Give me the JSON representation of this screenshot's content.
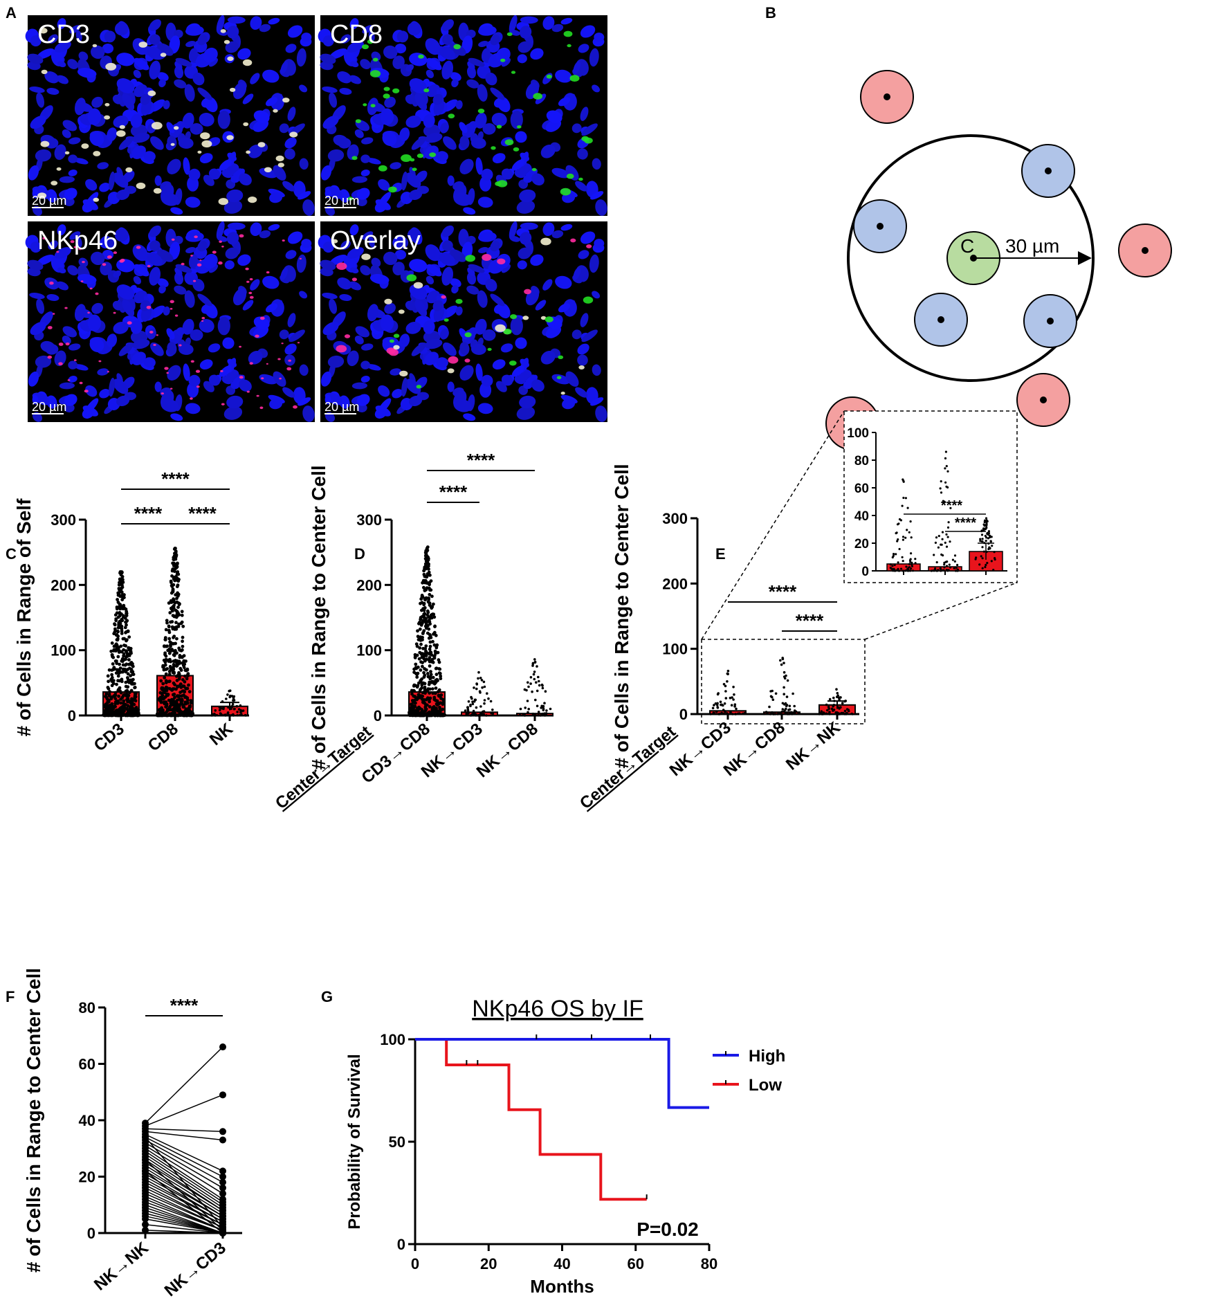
{
  "panel_labels": [
    "A",
    "B",
    "C",
    "D",
    "E",
    "F",
    "G"
  ],
  "colors": {
    "bar_red": "#e8141c",
    "nucleus_blue": "#1a1ae6",
    "cd8_green": "#22dd22",
    "nkp46_magenta": "#ff2aa0",
    "cd3_white": "#f4f0d0",
    "cell_red": "#f4a0a0",
    "cell_blue": "#b0c4e8",
    "cell_green": "#b8dca0",
    "km_high": "#1a1ae6",
    "km_low": "#e8141c"
  },
  "panel_a": {
    "channels": [
      "CD3",
      "CD8",
      "NKp46",
      "Overlay"
    ],
    "scale_bar": "20 µm"
  },
  "panel_b": {
    "center_label": "C",
    "radius_label": "30 µm"
  },
  "chart_data": [
    {
      "panel": "C",
      "type": "bar",
      "categories": [
        "CD3",
        "CD8",
        "NK"
      ],
      "values": [
        36,
        61,
        14
      ],
      "error_top": [
        null,
        null,
        20
      ],
      "point_max": [
        220,
        256,
        38
      ],
      "ylabel": "# of Cells in Range of Self",
      "ylim": [
        0,
        300
      ],
      "yticks": [
        0,
        100,
        200,
        300
      ],
      "comparisons": [
        {
          "from": "CD3",
          "to": "NK",
          "label": "****"
        },
        {
          "from": "CD3",
          "to": "CD8",
          "label": "****"
        },
        {
          "from": "CD8",
          "to": "NK",
          "label": "****"
        }
      ]
    },
    {
      "panel": "D",
      "type": "bar",
      "axis_note": "Center→Target",
      "categories": [
        "CD3→CD8",
        "NK→CD3",
        "NK→CD8"
      ],
      "values": [
        36,
        5,
        3
      ],
      "point_max": [
        258,
        66,
        86
      ],
      "ylabel": "# of Cells in Range to Center Cell",
      "ylim": [
        0,
        300
      ],
      "yticks": [
        0,
        100,
        200,
        300
      ],
      "comparisons": [
        {
          "from": "CD3→CD8",
          "to": "NK→CD8",
          "label": "****"
        },
        {
          "from": "CD3→CD8",
          "to": "NK→CD3",
          "label": "****"
        }
      ]
    },
    {
      "panel": "E",
      "type": "bar",
      "axis_note": "Center→Target",
      "categories": [
        "NK→CD3",
        "NK→CD8",
        "NK→NK"
      ],
      "values": [
        5,
        3,
        14
      ],
      "error_top": [
        null,
        null,
        20
      ],
      "point_max": [
        66,
        86,
        38
      ],
      "ylabel": "# of Cells in Range to Center Cell",
      "ylim": [
        0,
        300
      ],
      "yticks": [
        0,
        100,
        200,
        300
      ],
      "comparisons": [
        {
          "from": "NK→CD3",
          "to": "NK→NK",
          "label": "****"
        },
        {
          "from": "NK→CD8",
          "to": "NK→NK",
          "label": "****"
        }
      ],
      "inset": {
        "ylim": [
          0,
          100
        ],
        "yticks": [
          0,
          20,
          40,
          60,
          80,
          100
        ],
        "values": [
          5,
          3,
          14
        ],
        "comparisons": [
          {
            "from": "NK→CD3",
            "to": "NK→NK",
            "label": "****"
          },
          {
            "from": "NK→CD8",
            "to": "NK→NK",
            "label": "****"
          }
        ]
      }
    },
    {
      "panel": "F",
      "type": "scatter",
      "categories": [
        "NK→NK",
        "NK→CD3"
      ],
      "ylabel": "# of Cells in Range to Center Cell",
      "ylim": [
        0,
        80
      ],
      "yticks": [
        0,
        20,
        40,
        60,
        80
      ],
      "paired": [
        [
          39,
          66
        ],
        [
          38,
          49
        ],
        [
          37,
          36
        ],
        [
          36,
          33
        ],
        [
          35,
          22
        ],
        [
          34,
          20
        ],
        [
          33,
          18
        ],
        [
          32,
          16
        ],
        [
          31,
          14
        ],
        [
          30,
          12
        ],
        [
          29,
          11
        ],
        [
          28,
          10
        ],
        [
          27,
          9
        ],
        [
          26,
          8
        ],
        [
          25,
          8
        ],
        [
          24,
          7
        ],
        [
          23,
          6
        ],
        [
          22,
          6
        ],
        [
          21,
          5
        ],
        [
          20,
          5
        ],
        [
          19,
          4
        ],
        [
          18,
          4
        ],
        [
          17,
          3
        ],
        [
          16,
          3
        ],
        [
          15,
          2
        ],
        [
          14,
          2
        ],
        [
          13,
          1
        ],
        [
          12,
          1
        ],
        [
          11,
          1
        ],
        [
          10,
          0
        ],
        [
          9,
          0
        ],
        [
          8,
          0
        ],
        [
          7,
          0
        ],
        [
          6,
          0
        ],
        [
          5,
          0
        ],
        [
          3,
          0
        ],
        [
          1,
          0
        ],
        [
          22,
          0
        ],
        [
          26,
          1
        ],
        [
          34,
          2
        ]
      ],
      "comparisons": [
        {
          "from": "NK→NK",
          "to": "NK→CD3",
          "label": "****"
        }
      ]
    },
    {
      "panel": "G",
      "type": "line",
      "title": "NKp46 OS by IF",
      "xlabel": "Months",
      "ylabel": "Probability of Survival",
      "xlim": [
        0,
        80
      ],
      "ylim": [
        0,
        100
      ],
      "xticks": [
        0,
        20,
        40,
        60,
        80
      ],
      "yticks": [
        0,
        50,
        100
      ],
      "annotation": "P=0.02",
      "series": [
        {
          "name": "High",
          "steps": [
            [
              0,
              100
            ],
            [
              69,
              100
            ],
            [
              69,
              66.7
            ],
            [
              80,
              66.7
            ]
          ],
          "censored": [
            [
              33,
              100
            ],
            [
              48,
              100
            ],
            [
              64,
              100
            ]
          ]
        },
        {
          "name": "Low",
          "steps": [
            [
              0,
              100
            ],
            [
              8.5,
              100
            ],
            [
              8.5,
              87.5
            ],
            [
              25.5,
              87.5
            ],
            [
              25.5,
              65.6
            ],
            [
              34,
              65.6
            ],
            [
              34,
              43.8
            ],
            [
              50.5,
              43.8
            ],
            [
              50.5,
              21.9
            ],
            [
              63,
              21.9
            ]
          ],
          "censored": [
            [
              14,
              87.5
            ],
            [
              17,
              87.5
            ],
            [
              63,
              21.9
            ]
          ]
        }
      ]
    }
  ]
}
